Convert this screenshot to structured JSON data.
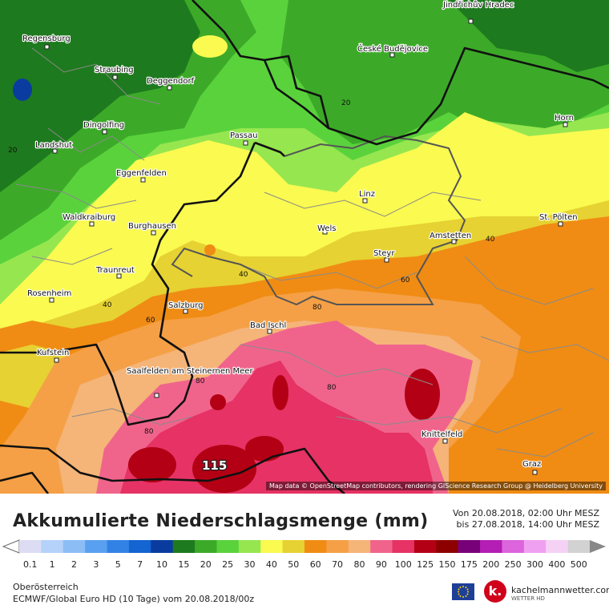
{
  "map": {
    "attribution": "Map data © OpenStreetMap contributors, rendering GIScience Research Group @ Heidelberg University",
    "max_label": "115",
    "cities": [
      {
        "name": "Regensburg"
      },
      {
        "name": "Straubing"
      },
      {
        "name": "Deggendorf"
      },
      {
        "name": "České Budějovice"
      },
      {
        "name": "Jindřichův Hradec"
      },
      {
        "name": "Horn"
      },
      {
        "name": "Dingolfing"
      },
      {
        "name": "Landshut"
      },
      {
        "name": "Passau"
      },
      {
        "name": "Eggenfelden"
      },
      {
        "name": "Linz"
      },
      {
        "name": "Waldkraiburg"
      },
      {
        "name": "Burghausen"
      },
      {
        "name": "Wels"
      },
      {
        "name": "Amstetten"
      },
      {
        "name": "St. Pölten"
      },
      {
        "name": "Steyr"
      },
      {
        "name": "Traunreut"
      },
      {
        "name": "Rosenheim"
      },
      {
        "name": "Salzburg"
      },
      {
        "name": "Bad Ischl"
      },
      {
        "name": "Kufstein"
      },
      {
        "name": "Saalfelden am Steinernen Meer"
      },
      {
        "name": "Knittelfeld"
      },
      {
        "name": "Graz"
      }
    ],
    "contour_labels": [
      "20",
      "20",
      "40",
      "40",
      "40",
      "60",
      "60",
      "80",
      "80",
      "80",
      "80"
    ]
  },
  "title": "Akkumulierte Niederschlagsmenge (mm)",
  "period_from": "Von 20.08.2018, 02:00 Uhr MESZ",
  "period_to": "bis 27.08.2018, 14:00 Uhr MESZ",
  "legend": {
    "values": [
      "0.1",
      "1",
      "2",
      "3",
      "5",
      "7",
      "10",
      "15",
      "20",
      "25",
      "30",
      "40",
      "50",
      "60",
      "70",
      "80",
      "90",
      "100",
      "125",
      "150",
      "175",
      "200",
      "250",
      "300",
      "400",
      "500"
    ],
    "colors": [
      "#dcdcf5",
      "#b4d2fa",
      "#8cbef5",
      "#5aa0f0",
      "#3282e6",
      "#1464d2",
      "#0a3ca0",
      "#1e7a1e",
      "#3caa28",
      "#5ad23c",
      "#96e650",
      "#fafa50",
      "#e6d232",
      "#f08c14",
      "#f5a046",
      "#f5b478",
      "#f0648c",
      "#e63264",
      "#b40014",
      "#8c0000",
      "#780078",
      "#b41eb4",
      "#dc64dc",
      "#f0a0f0",
      "#f5d2f5",
      "#d2d2d2"
    ]
  },
  "footer": {
    "region": "Oberösterreich",
    "model": "ECMWF/Global Euro HD (10 Tage) vom 20.08.2018/00z"
  },
  "logo": {
    "letter": "k.",
    "name": "kachelmannwetter.com",
    "sub": "WETTER HD"
  }
}
